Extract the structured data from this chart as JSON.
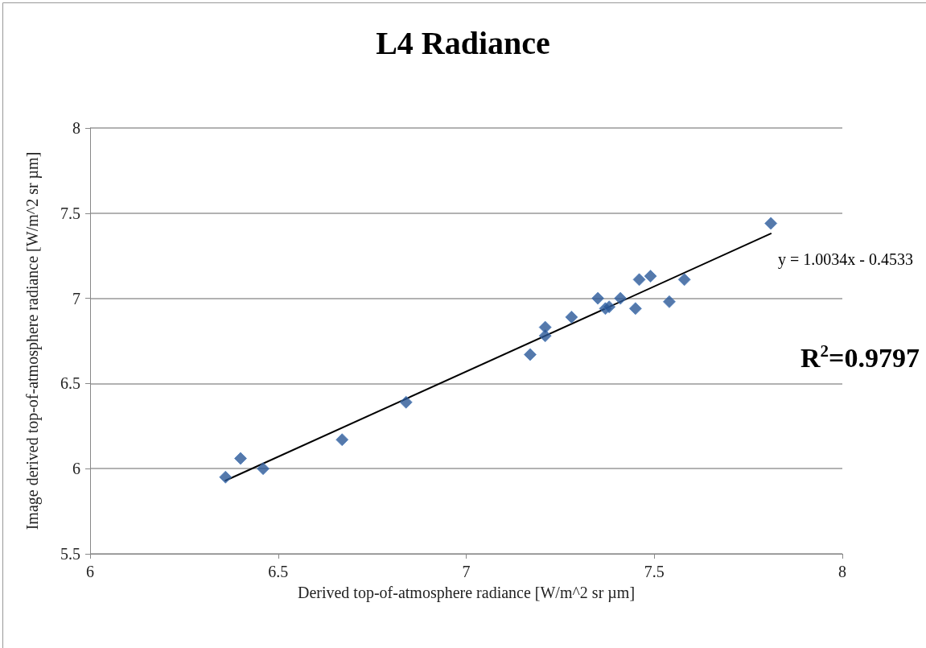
{
  "chart_data": {
    "type": "scatter",
    "title": "L4 Radiance",
    "xlabel": "Derived top-of-atmosphere radiance [W/m^2 sr µm]",
    "ylabel": "Image derived top-of-atmosphere radiance [W/m^2 sr µm]",
    "xlim": [
      6,
      8
    ],
    "xticks": [
      6,
      6.5,
      7,
      7.5,
      8
    ],
    "ylim": [
      5.5,
      8
    ],
    "yticks": [
      5.5,
      6,
      6.5,
      7,
      7.5,
      8
    ],
    "grid": "y",
    "marker": "diamond",
    "series": [
      {
        "color": "#2a5896",
        "x": [
          6.36,
          6.4,
          6.46,
          6.67,
          6.84,
          7.17,
          7.21,
          7.21,
          7.28,
          7.35,
          7.37,
          7.38,
          7.41,
          7.45,
          7.46,
          7.49,
          7.54,
          7.58,
          7.81
        ],
        "values": [
          5.95,
          6.06,
          6.0,
          6.17,
          6.39,
          6.67,
          6.78,
          6.83,
          6.89,
          7.0,
          6.94,
          6.95,
          7.0,
          6.94,
          7.11,
          7.13,
          6.98,
          7.11,
          7.44
        ]
      },
      {
        "type": "line",
        "color": "#000000",
        "marker": "none",
        "line_style": "solid",
        "x": [
          6.36,
          7.81
        ],
        "values": [
          5.93,
          7.38
        ]
      }
    ],
    "annotations": [
      "y = 1.0034x - 0.4533",
      "R$^{2}$=0.9797"
    ]
  }
}
